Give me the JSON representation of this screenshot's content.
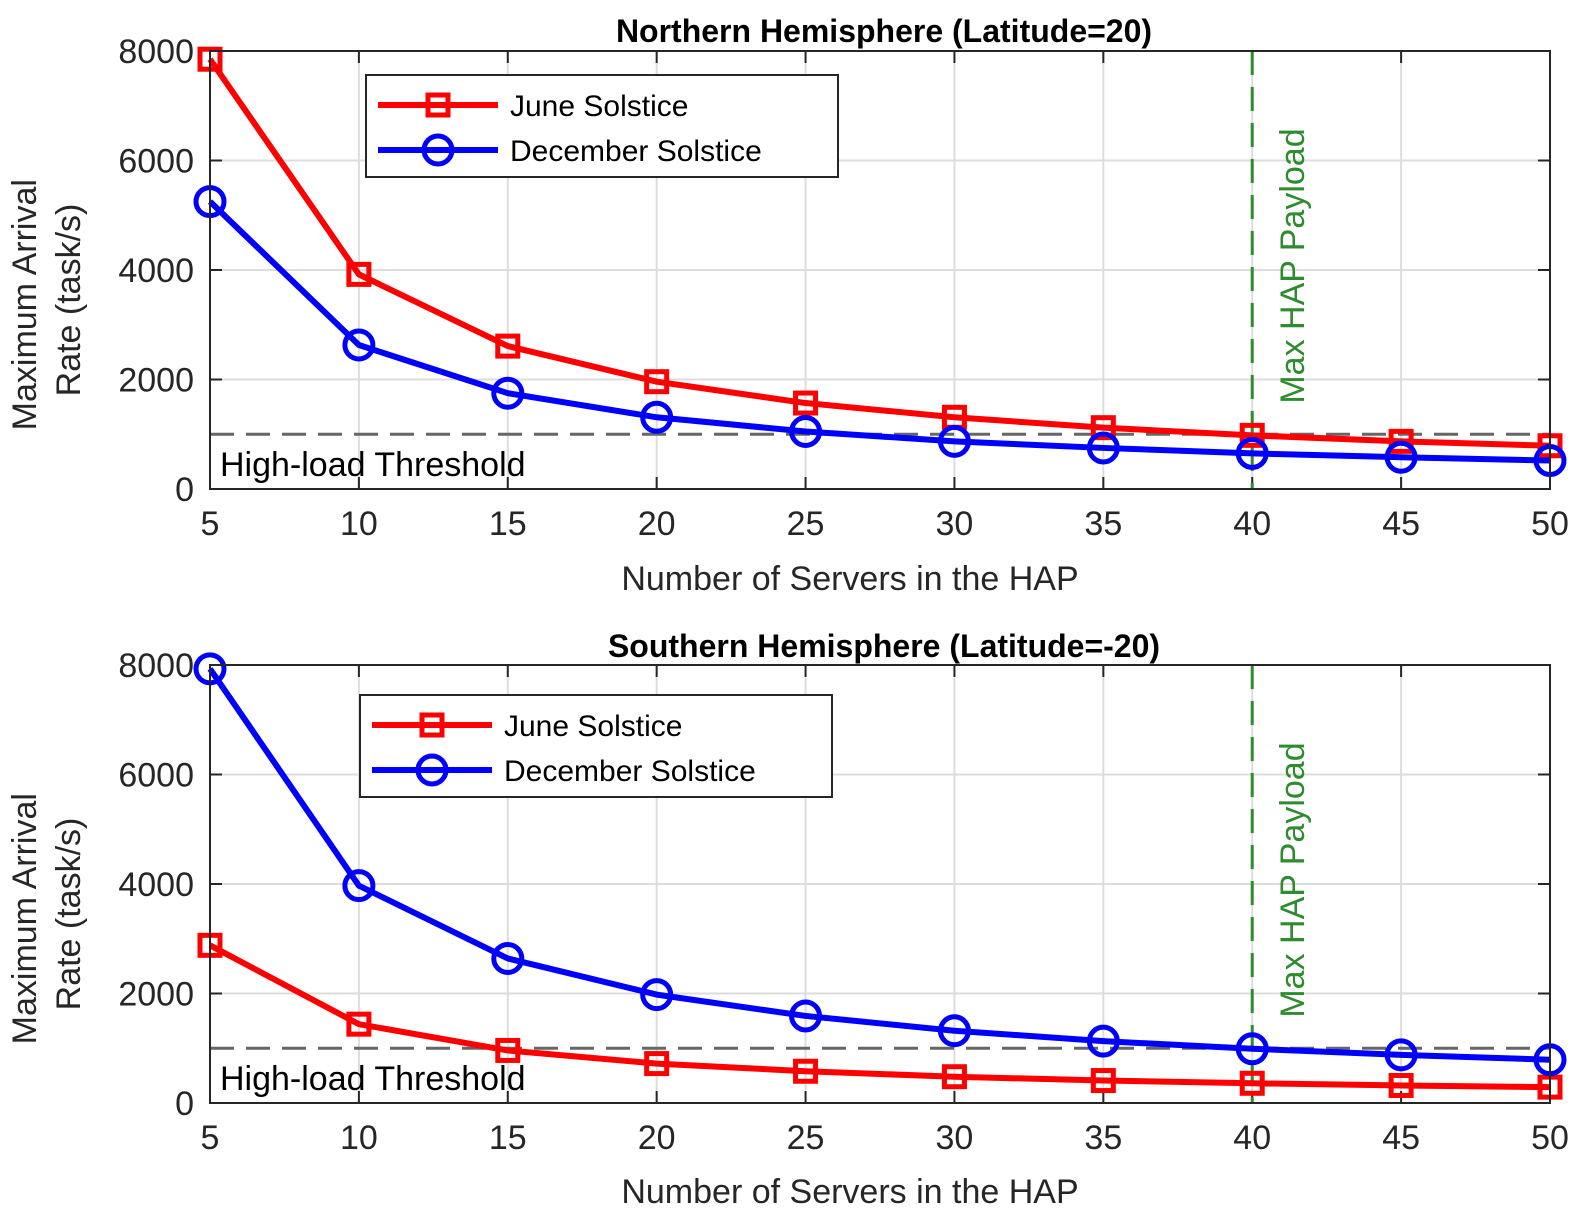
{
  "colors": {
    "june": "#ff0000",
    "december": "#0000ff",
    "threshold": "#666666",
    "payload": "#2e8b2e",
    "grid": "#dddddd",
    "axis": "#262626"
  },
  "chart_data": [
    {
      "type": "line",
      "title": "Northern Hemisphere (Latitude=20)",
      "xlabel": "Number of Servers in the HAP",
      "ylabel": [
        "Maximum Arrival",
        "Rate (task/s)"
      ],
      "x": [
        5,
        10,
        15,
        20,
        25,
        30,
        35,
        40,
        45,
        50
      ],
      "xticks": [
        "5",
        "10",
        "15",
        "20",
        "25",
        "30",
        "35",
        "40",
        "45",
        "50"
      ],
      "yticks": [
        "0",
        "2000",
        "4000",
        "6000",
        "8000"
      ],
      "xlim": [
        5,
        50
      ],
      "ylim": [
        0,
        8000
      ],
      "grid": true,
      "legend_position": "top-left",
      "series": [
        {
          "name": "June Solstice",
          "marker": "square",
          "color": "#ff0000",
          "values": [
            7850,
            3920,
            2610,
            1960,
            1570,
            1310,
            1120,
            980,
            870,
            790
          ]
        },
        {
          "name": "December Solstice",
          "marker": "circle",
          "color": "#0000ff",
          "values": [
            5250,
            2630,
            1750,
            1310,
            1050,
            870,
            750,
            650,
            580,
            520
          ]
        }
      ],
      "threshold": {
        "value": 1000,
        "label": "High-load Threshold"
      },
      "vline": {
        "x": 40,
        "label": "Max HAP Payload"
      }
    },
    {
      "type": "line",
      "title": "Southern Hemisphere (Latitude=-20)",
      "xlabel": "Number of Servers in the HAP",
      "ylabel": [
        "Maximum Arrival",
        "Rate (task/s)"
      ],
      "x": [
        5,
        10,
        15,
        20,
        25,
        30,
        35,
        40,
        45,
        50
      ],
      "xticks": [
        "5",
        "10",
        "15",
        "20",
        "25",
        "30",
        "35",
        "40",
        "45",
        "50"
      ],
      "yticks": [
        "0",
        "2000",
        "4000",
        "6000",
        "8000"
      ],
      "xlim": [
        5,
        50
      ],
      "ylim": [
        0,
        8000
      ],
      "grid": true,
      "legend_position": "top-left",
      "series": [
        {
          "name": "June Solstice",
          "marker": "square",
          "color": "#ff0000",
          "values": [
            2880,
            1440,
            960,
            720,
            580,
            480,
            410,
            360,
            320,
            290
          ]
        },
        {
          "name": "December Solstice",
          "marker": "circle",
          "color": "#0000ff",
          "values": [
            7930,
            3970,
            2640,
            1980,
            1590,
            1320,
            1130,
            990,
            880,
            790
          ]
        }
      ],
      "threshold": {
        "value": 1000,
        "label": "High-load Threshold"
      },
      "vline": {
        "x": 40,
        "label": "Max HAP Payload"
      }
    }
  ]
}
